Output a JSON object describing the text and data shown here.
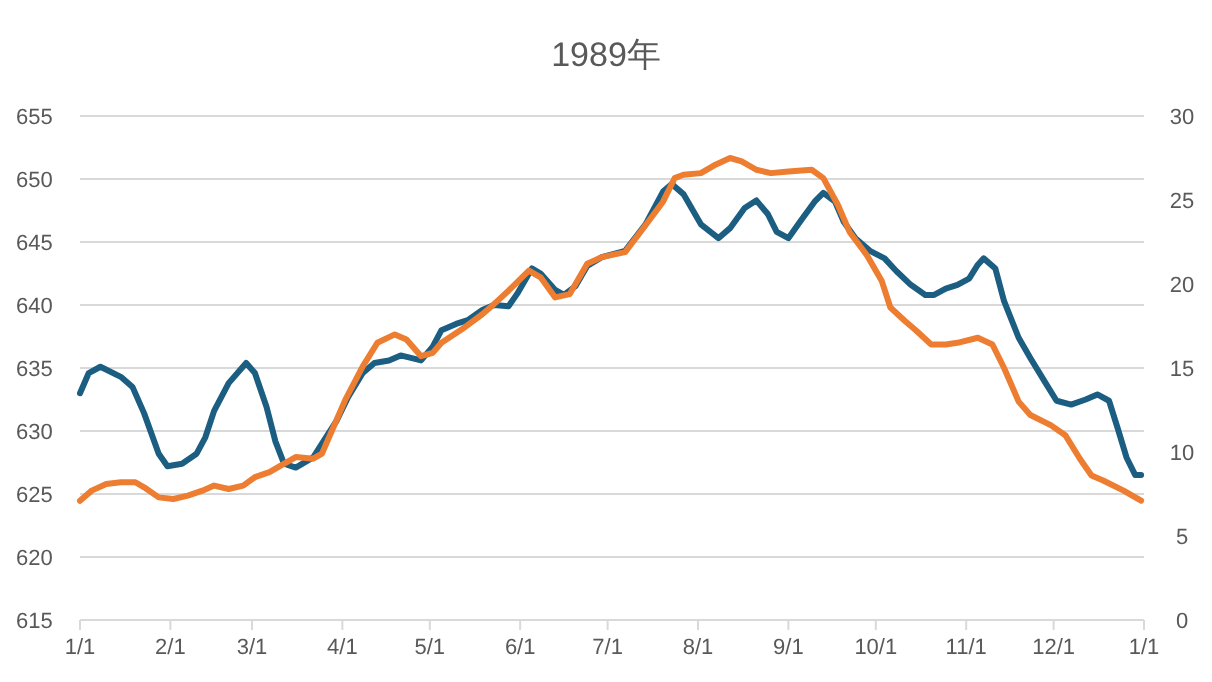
{
  "chart_data": {
    "type": "line",
    "title": "1989年",
    "xlim": [
      "1989-01-01",
      "1990-01-01"
    ],
    "xticks": [
      {
        "value": "1989-01-01",
        "label": "1/1"
      },
      {
        "value": "1989-02-01",
        "label": "2/1"
      },
      {
        "value": "1989-03-01",
        "label": "3/1"
      },
      {
        "value": "1989-04-01",
        "label": "4/1"
      },
      {
        "value": "1989-05-01",
        "label": "5/1"
      },
      {
        "value": "1989-06-01",
        "label": "6/1"
      },
      {
        "value": "1989-07-01",
        "label": "7/1"
      },
      {
        "value": "1989-08-01",
        "label": "8/1"
      },
      {
        "value": "1989-09-01",
        "label": "9/1"
      },
      {
        "value": "1989-10-01",
        "label": "10/1"
      },
      {
        "value": "1989-11-01",
        "label": "11/1"
      },
      {
        "value": "1989-12-01",
        "label": "12/1"
      },
      {
        "value": "1990-01-01",
        "label": "1/1"
      }
    ],
    "ylim": [
      615,
      655
    ],
    "yticks": [
      615,
      620,
      625,
      630,
      635,
      640,
      645,
      650,
      655
    ],
    "y2lim": [
      0,
      30
    ],
    "y2ticks": [
      0,
      5,
      10,
      15,
      20,
      25,
      30
    ],
    "grid": "y",
    "series": [
      {
        "color": "#1b5e82",
        "x": [
          "1989-01-01",
          "1989-01-04",
          "1989-01-08",
          "1989-01-15",
          "1989-01-19",
          "1989-01-23",
          "1989-01-28",
          "1989-01-31",
          "1989-02-05",
          "1989-02-10",
          "1989-02-13",
          "1989-02-16",
          "1989-02-21",
          "1989-02-27",
          "1989-03-02",
          "1989-03-06",
          "1989-03-09",
          "1989-03-12",
          "1989-03-16",
          "1989-03-22",
          "1989-03-25",
          "1989-03-30",
          "1989-04-03",
          "1989-04-08",
          "1989-04-12",
          "1989-04-17",
          "1989-04-21",
          "1989-04-28",
          "1989-05-02",
          "1989-05-05",
          "1989-05-10",
          "1989-05-14",
          "1989-05-19",
          "1989-05-23",
          "1989-05-28",
          "1989-05-31",
          "1989-06-05",
          "1989-06-08",
          "1989-06-13",
          "1989-06-16",
          "1989-06-20",
          "1989-06-24",
          "1989-06-29",
          "1989-07-07",
          "1989-07-14",
          "1989-07-20",
          "1989-07-23",
          "1989-07-27",
          "1989-08-02",
          "1989-08-08",
          "1989-08-12",
          "1989-08-17",
          "1989-08-21",
          "1989-08-25",
          "1989-08-28",
          "1989-09-01",
          "1989-09-05",
          "1989-09-10",
          "1989-09-13",
          "1989-09-17",
          "1989-09-20",
          "1989-09-24",
          "1989-09-29",
          "1989-10-04",
          "1989-10-08",
          "1989-10-13",
          "1989-10-18",
          "1989-10-21",
          "1989-10-25",
          "1989-10-29",
          "1989-11-02",
          "1989-11-05",
          "1989-11-07",
          "1989-11-11",
          "1989-11-14",
          "1989-11-19",
          "1989-11-23",
          "1989-11-28",
          "1989-12-02",
          "1989-12-07",
          "1989-12-12",
          "1989-12-16",
          "1989-12-20",
          "1989-12-23",
          "1989-12-26",
          "1989-12-29",
          "1989-12-31"
        ],
        "values": [
          633.0,
          634.6,
          635.1,
          634.3,
          633.5,
          631.4,
          628.2,
          627.2,
          627.4,
          628.2,
          629.5,
          631.6,
          633.8,
          635.4,
          634.6,
          631.9,
          629.2,
          627.4,
          627.1,
          627.9,
          629.0,
          630.8,
          632.7,
          634.6,
          635.4,
          635.6,
          636.0,
          635.6,
          636.7,
          638.0,
          638.5,
          638.8,
          639.6,
          640.0,
          639.9,
          640.9,
          642.9,
          642.5,
          641.2,
          640.8,
          641.5,
          643.1,
          643.8,
          644.3,
          646.4,
          649.0,
          649.6,
          648.8,
          646.4,
          645.3,
          646.1,
          647.7,
          648.3,
          647.2,
          645.8,
          645.3,
          646.6,
          648.2,
          648.9,
          648.2,
          646.6,
          645.3,
          644.3,
          643.7,
          642.7,
          641.6,
          640.8,
          640.8,
          641.3,
          641.6,
          642.1,
          643.2,
          643.7,
          642.9,
          640.3,
          637.4,
          635.8,
          633.9,
          632.4,
          632.1,
          632.5,
          632.9,
          632.4,
          630.2,
          627.9,
          626.5,
          626.5
        ]
      },
      {
        "color": "#ed7d31",
        "axis": "y2",
        "x": [
          "1989-01-01",
          "1989-01-05",
          "1989-01-10",
          "1989-01-15",
          "1989-01-20",
          "1989-01-23",
          "1989-01-28",
          "1989-02-02",
          "1989-02-07",
          "1989-02-12",
          "1989-02-16",
          "1989-02-21",
          "1989-02-26",
          "1989-03-02",
          "1989-03-07",
          "1989-03-11",
          "1989-03-16",
          "1989-03-22",
          "1989-03-25",
          "1989-03-28",
          "1989-04-02",
          "1989-04-08",
          "1989-04-13",
          "1989-04-19",
          "1989-04-23",
          "1989-04-28",
          "1989-05-02",
          "1989-05-05",
          "1989-05-12",
          "1989-05-19",
          "1989-05-23",
          "1989-05-28",
          "1989-06-04",
          "1989-06-08",
          "1989-06-13",
          "1989-06-18",
          "1989-06-24",
          "1989-06-29",
          "1989-07-07",
          "1989-07-14",
          "1989-07-20",
          "1989-07-24",
          "1989-07-27",
          "1989-08-02",
          "1989-08-07",
          "1989-08-12",
          "1989-08-16",
          "1989-08-21",
          "1989-08-26",
          "1989-09-01",
          "1989-09-09",
          "1989-09-13",
          "1989-09-18",
          "1989-09-22",
          "1989-09-28",
          "1989-10-03",
          "1989-10-06",
          "1989-10-11",
          "1989-10-15",
          "1989-10-20",
          "1989-10-25",
          "1989-10-29",
          "1989-11-05",
          "1989-11-10",
          "1989-11-14",
          "1989-11-19",
          "1989-11-23",
          "1989-11-30",
          "1989-12-05",
          "1989-12-10",
          "1989-12-14",
          "1989-12-18",
          "1989-12-25",
          "1989-12-31"
        ],
        "values": [
          7.1,
          7.7,
          8.1,
          8.2,
          8.2,
          7.9,
          7.3,
          7.2,
          7.4,
          7.7,
          8.0,
          7.8,
          8.0,
          8.5,
          8.8,
          9.2,
          9.7,
          9.6,
          9.9,
          11.1,
          13.1,
          15.1,
          16.5,
          17.0,
          16.7,
          15.7,
          15.9,
          16.5,
          17.3,
          18.2,
          18.8,
          19.6,
          20.8,
          20.4,
          19.2,
          19.4,
          21.2,
          21.6,
          21.9,
          23.5,
          24.9,
          26.3,
          26.5,
          26.6,
          27.1,
          27.5,
          27.3,
          26.8,
          26.6,
          26.7,
          26.8,
          26.3,
          24.7,
          23.1,
          21.7,
          20.2,
          18.6,
          17.8,
          17.2,
          16.4,
          16.4,
          16.5,
          16.8,
          16.4,
          15.0,
          13.0,
          12.2,
          11.6,
          11.0,
          9.6,
          8.6,
          8.3,
          7.7,
          7.1
        ]
      }
    ]
  }
}
